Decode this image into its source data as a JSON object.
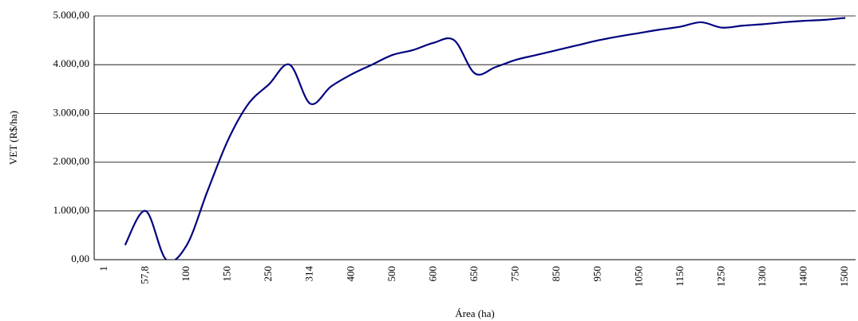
{
  "chart_data": {
    "type": "line",
    "x_label": "Área (ha)",
    "y_label": "VET (R$/ha)",
    "categories": [
      "1",
      null,
      "57,8",
      null,
      "100",
      null,
      "150",
      null,
      "250",
      null,
      "314",
      null,
      "400",
      null,
      "500",
      null,
      "600",
      null,
      "650",
      null,
      "750",
      null,
      "850",
      null,
      "950",
      null,
      "1050",
      null,
      "1150",
      null,
      "1250",
      null,
      "1300",
      null,
      "1400",
      null,
      "1500"
    ],
    "values": [
      null,
      300,
      1000,
      0,
      300,
      1400,
      2450,
      3200,
      3600,
      4000,
      3200,
      3550,
      3800,
      4000,
      4200,
      4300,
      4450,
      4500,
      3820,
      3950,
      4100,
      4200,
      4300,
      4400,
      4500,
      4580,
      4650,
      4720,
      4780,
      4870,
      4760,
      4800,
      4830,
      4870,
      4900,
      4920,
      4960
    ],
    "color": "#000080",
    "ylim": [
      0,
      5000
    ],
    "yticks": [
      {
        "value": 0,
        "label": "0,00"
      },
      {
        "value": 1000,
        "label": "1.000,00"
      },
      {
        "value": 2000,
        "label": "2.000,00"
      },
      {
        "value": 3000,
        "label": "3.000,00"
      },
      {
        "value": 4000,
        "label": "4.000,00"
      },
      {
        "value": 5000,
        "label": "5.000,00"
      }
    ],
    "grid": true
  }
}
